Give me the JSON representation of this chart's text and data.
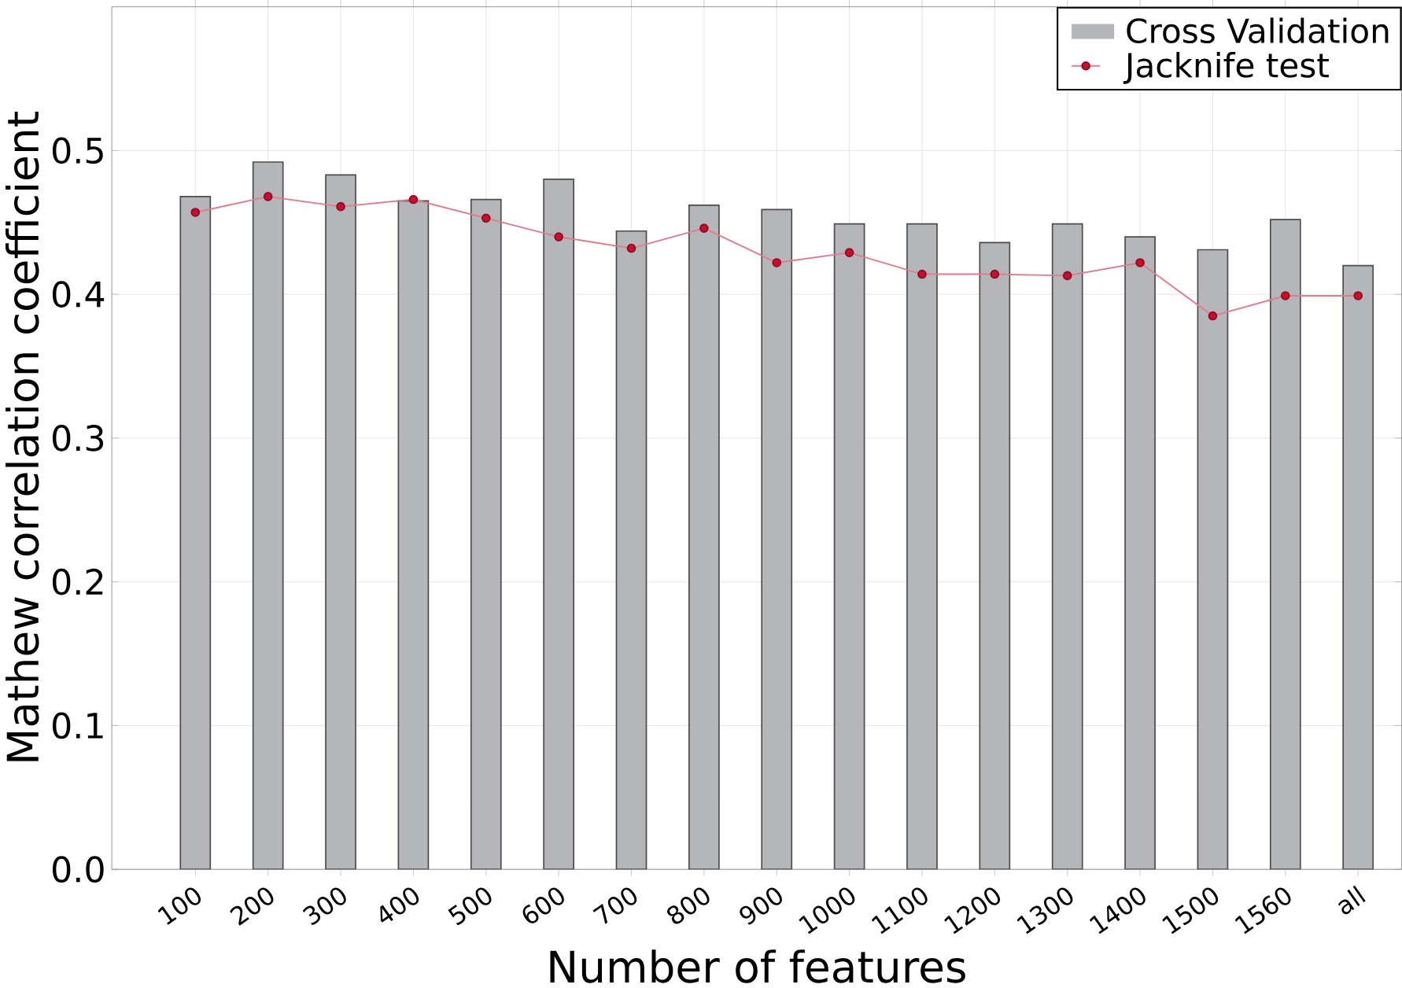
{
  "chart_data": {
    "type": "bar",
    "xlabel": "Number of features",
    "ylabel": "Mathew correlation coefficient",
    "categories": [
      "100",
      "200",
      "300",
      "400",
      "500",
      "600",
      "700",
      "800",
      "900",
      "1000",
      "1100",
      "1200",
      "1300",
      "1400",
      "1500",
      "1560",
      "all"
    ],
    "series": [
      {
        "name": "Cross Validation",
        "type": "bar",
        "color": "#b4b6ba",
        "values": [
          0.468,
          0.492,
          0.483,
          0.465,
          0.466,
          0.48,
          0.444,
          0.462,
          0.459,
          0.449,
          0.449,
          0.436,
          0.449,
          0.44,
          0.431,
          0.452,
          0.42
        ]
      },
      {
        "name": "Jacknife test",
        "type": "line",
        "color": "#c8102e",
        "marker": "circle",
        "values": [
          0.457,
          0.468,
          0.461,
          0.466,
          0.453,
          0.44,
          0.432,
          0.446,
          0.422,
          0.429,
          0.414,
          0.414,
          0.413,
          0.422,
          0.385,
          0.399,
          0.399
        ]
      }
    ],
    "ylim": [
      0,
      0.6
    ],
    "yticks": [
      {
        "value": 0.0,
        "label": "0.0"
      },
      0.1,
      0.2,
      0.3,
      0.4,
      0.5
    ],
    "grid": true,
    "legend": "top right"
  }
}
